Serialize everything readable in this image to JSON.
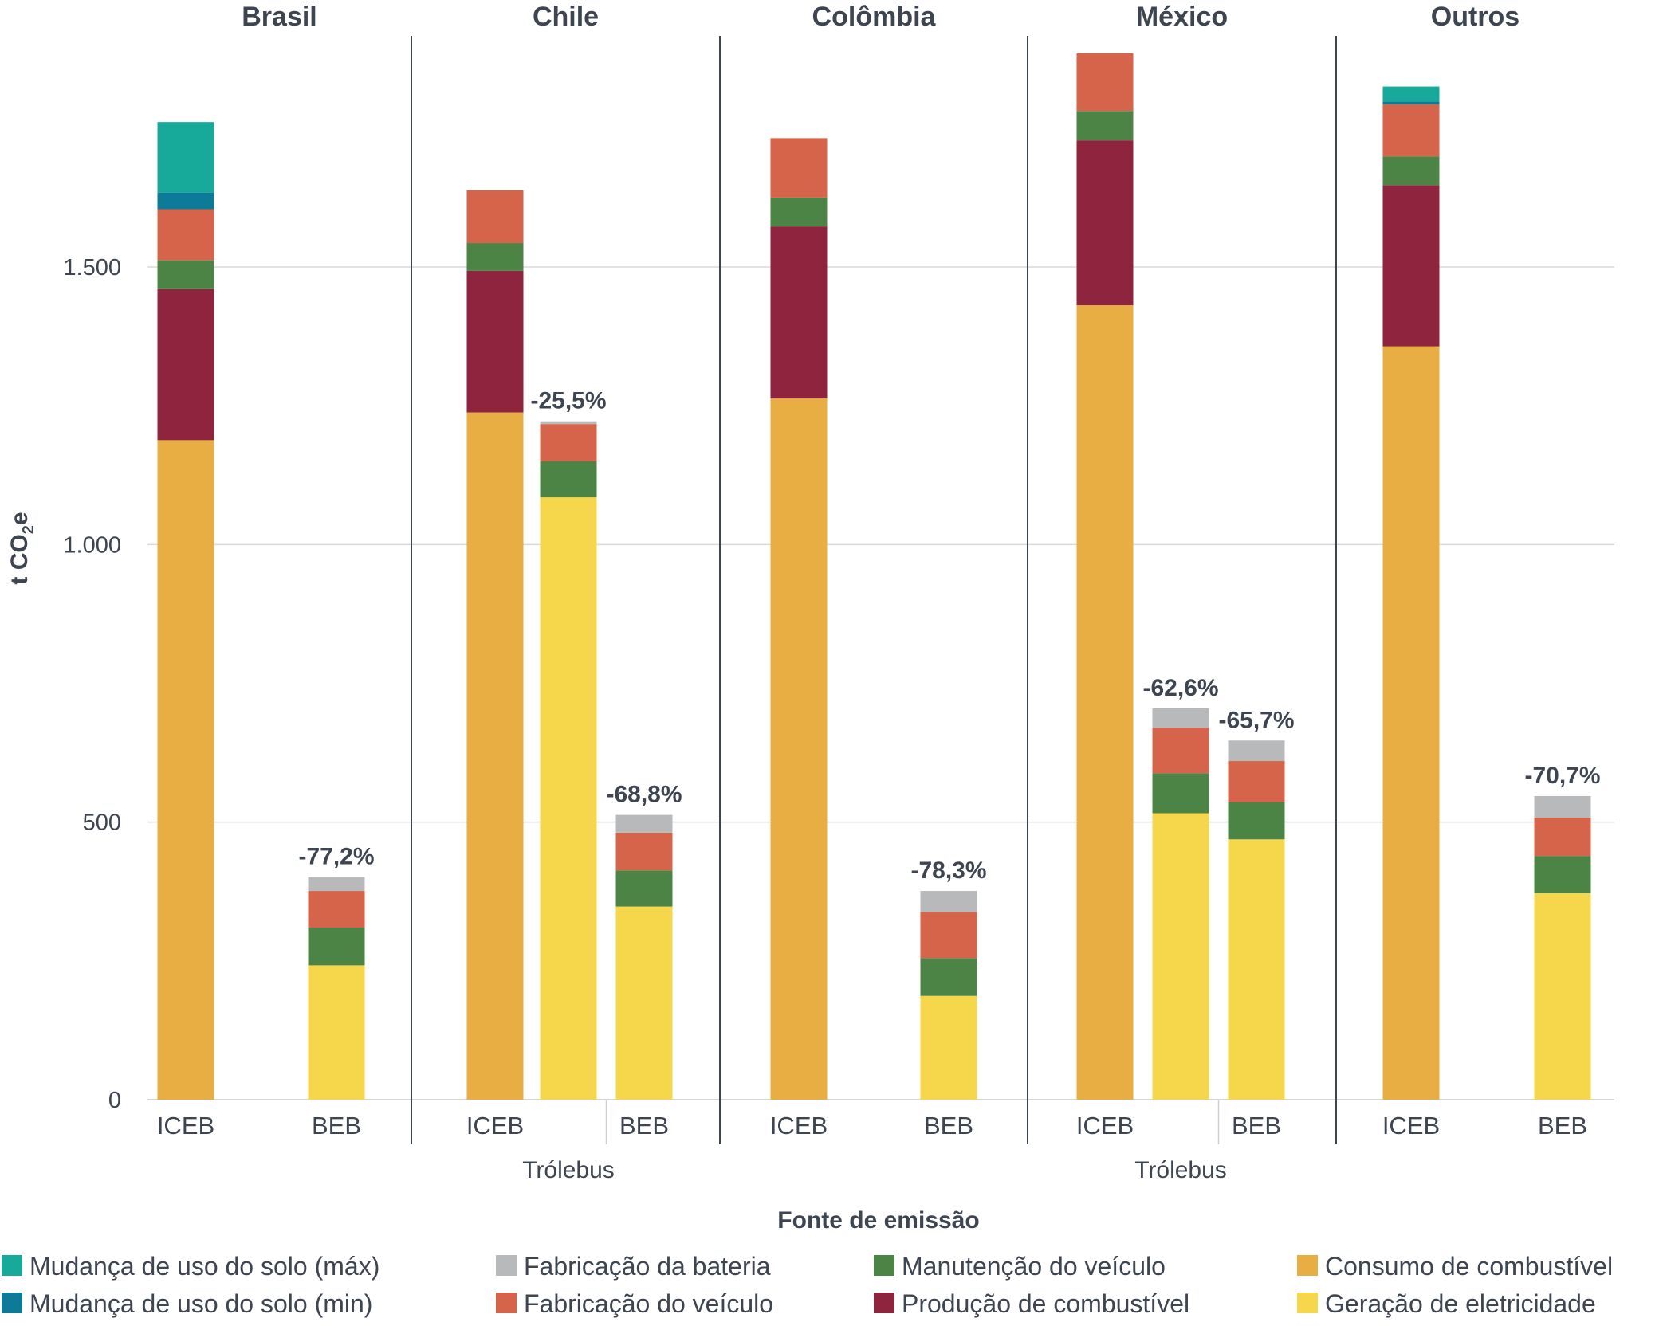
{
  "chart_data": {
    "type": "bar",
    "stacked": true,
    "ylabel": "t CO",
    "ylabel_sub": "2",
    "ylabel_suffix": "e",
    "xlabel": "Fonte de emissão",
    "ylim": [
      0,
      1900
    ],
    "yticks": [
      {
        "value": 0,
        "label": "0"
      },
      {
        "value": 500,
        "label": "500"
      },
      {
        "value": 1000,
        "label": "1.000"
      },
      {
        "value": 1500,
        "label": "1.500"
      }
    ],
    "grid": true,
    "legend_position": "bottom",
    "series": [
      {
        "key": "consumo",
        "name": "Consumo de combustível",
        "color": "#e8ae43"
      },
      {
        "key": "geracao",
        "name": "Geração de eletricidade",
        "color": "#f6d64a"
      },
      {
        "key": "producao",
        "name": "Produção de combustível",
        "color": "#8f243e"
      },
      {
        "key": "manutencao",
        "name": "Manutenção do veículo",
        "color": "#4b8444"
      },
      {
        "key": "fab_veiculo",
        "name": "Fabricação do veículo",
        "color": "#d5644a"
      },
      {
        "key": "fab_bateria",
        "name": "Fabricação da bateria",
        "color": "#b8b9bb"
      },
      {
        "key": "uso_min",
        "name": "Mudança de uso do solo (min)",
        "color": "#0d7a97"
      },
      {
        "key": "uso_max",
        "name": "Mudança de uso do solo (máx)",
        "color": "#17a99a"
      }
    ],
    "stack_order": [
      "consumo",
      "geracao",
      "producao",
      "manutencao",
      "fab_veiculo",
      "fab_bateria",
      "uso_min",
      "uso_max"
    ],
    "legend_columns": [
      [
        "uso_max",
        "uso_min"
      ],
      [
        "fab_bateria",
        "fab_veiculo"
      ],
      [
        "manutencao",
        "producao"
      ],
      [
        "consumo",
        "geracao"
      ]
    ],
    "groups": [
      {
        "name": "Brasil",
        "bars": [
          {
            "label": "ICEB",
            "values": {
              "consumo": 1188,
              "producao": 272,
              "manutencao": 52,
              "fab_veiculo": 92,
              "uso_min": 30,
              "uso_max": 127
            }
          },
          {
            "label": "BEB",
            "pct": "-77,2%",
            "values": {
              "geracao": 242,
              "manutencao": 68,
              "fab_veiculo": 66,
              "fab_bateria": 25
            }
          }
        ],
        "sublabels": []
      },
      {
        "name": "Chile",
        "bars": [
          {
            "label": "ICEB",
            "values": {
              "consumo": 1238,
              "producao": 255,
              "manutencao": 50,
              "fab_veiculo": 95
            }
          },
          {
            "label": "",
            "pct": "-25,5%",
            "values": {
              "geracao": 1085,
              "manutencao": 65,
              "fab_veiculo": 67,
              "fab_bateria": 5
            }
          },
          {
            "label": "BEB",
            "pct": "-68,8%",
            "values": {
              "geracao": 348,
              "manutencao": 65,
              "fab_veiculo": 68,
              "fab_bateria": 32
            }
          }
        ],
        "sublabels": [
          {
            "text": "Trólebus",
            "bar": 1
          }
        ]
      },
      {
        "name": "Colômbia",
        "bars": [
          {
            "label": "ICEB",
            "values": {
              "consumo": 1263,
              "producao": 310,
              "manutencao": 52,
              "fab_veiculo": 107
            }
          },
          {
            "label": "BEB",
            "pct": "-78,3%",
            "values": {
              "geracao": 187,
              "manutencao": 68,
              "fab_veiculo": 83,
              "fab_bateria": 38
            }
          }
        ],
        "sublabels": []
      },
      {
        "name": "México",
        "bars": [
          {
            "label": "ICEB",
            "values": {
              "consumo": 1431,
              "producao": 297,
              "manutencao": 53,
              "fab_veiculo": 104
            }
          },
          {
            "label": "",
            "pct": "-62,6%",
            "values": {
              "geracao": 516,
              "manutencao": 72,
              "fab_veiculo": 82,
              "fab_bateria": 35
            }
          },
          {
            "label": "BEB",
            "pct": "-65,7%",
            "values": {
              "geracao": 469,
              "manutencao": 67,
              "fab_veiculo": 74,
              "fab_bateria": 37
            }
          }
        ],
        "sublabels": [
          {
            "text": "Trólebus",
            "bar": 1
          }
        ]
      },
      {
        "name": "Outros",
        "bars": [
          {
            "label": "ICEB",
            "values": {
              "consumo": 1357,
              "producao": 290,
              "manutencao": 52,
              "fab_veiculo": 94,
              "uso_min": 5,
              "uso_max": 27
            }
          },
          {
            "label": "BEB",
            "pct": "-70,7%",
            "values": {
              "geracao": 372,
              "manutencao": 67,
              "fab_veiculo": 69,
              "fab_bateria": 39
            }
          }
        ],
        "sublabels": []
      }
    ]
  }
}
